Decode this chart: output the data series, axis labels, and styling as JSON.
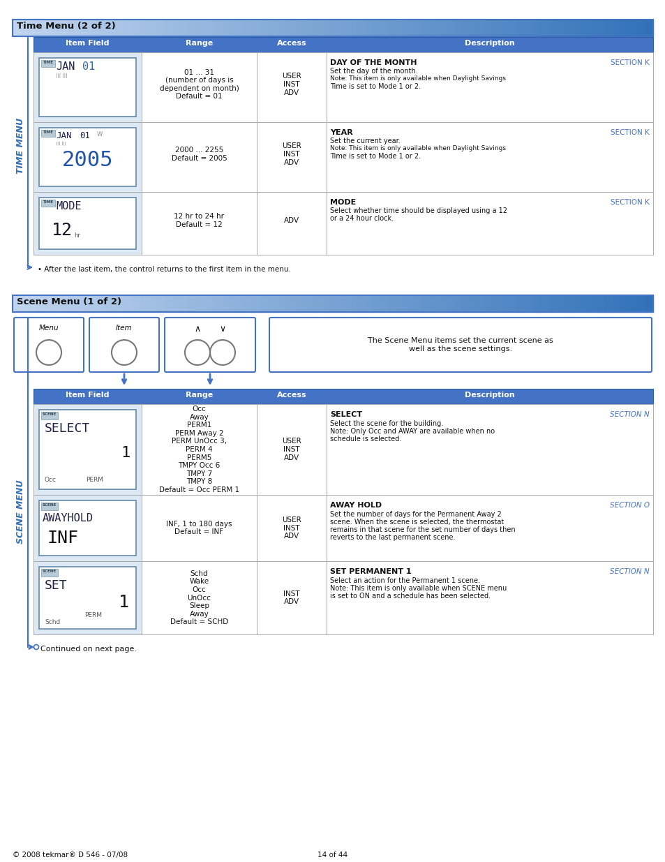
{
  "page_bg": "#ffffff",
  "time_menu_title": "Time Menu (2 of 2)",
  "scene_menu_title": "Scene Menu (1 of 2)",
  "header_bg": "#4472c4",
  "section_header_bg_left": "#c5d9f1",
  "section_header_bg_right": "#2e75b6",
  "table_header_cols": [
    "Item Field",
    "Range",
    "Access",
    "Description"
  ],
  "side_label_color": "#3070b8",
  "section_k_color": "#4472c4",
  "section_n_color": "#4472c4",
  "section_o_color": "#4472c4",
  "border_color": "#4472c4",
  "display_bg": "#c8d8e8",
  "display_item_bg": "#dde8f0",
  "time_rows": [
    {
      "range": "01 ... 31\n(number of days is\ndependent on month)\nDefault = 01",
      "access": "USER\nINST\nADV",
      "desc_title": "DAY OF THE MONTH",
      "desc_section": "SECTION K",
      "desc_body": "Set the day of the month.\nNote: This item is only available when Daylight Savings\nTime is set to Mode 1 or 2."
    },
    {
      "range": "2000 ... 2255\nDefault = 2005",
      "access": "USER\nINST\nADV",
      "desc_title": "YEAR",
      "desc_section": "SECTION K",
      "desc_body": "Set the current year.\nNote: This item is only available when Daylight Savings\nTime is set to Mode 1 or 2."
    },
    {
      "range": "12 hr to 24 hr\nDefault = 12",
      "access": "ADV",
      "desc_title": "MODE",
      "desc_section": "SECTION K",
      "desc_body": "Select whether time should be displayed using a 12\nor a 24 hour clock."
    }
  ],
  "scene_rows": [
    {
      "range": "Occ\nAway\nPERM1\nPERM Away 2\nPERM UnOcc 3,\nPERM 4\nPERM5\nTMPY Occ 6\nTMPY 7\nTMPY 8\nDefault = Occ PERM 1",
      "access": "USER\nINST\nADV",
      "desc_title": "SELECT",
      "desc_section": "SECTION N",
      "desc_body": "Select the scene for the building.\nNote: Only Occ and AWAY are available when no\nschedule is selected."
    },
    {
      "range": "INF, 1 to 180 days\nDefault = INF",
      "access": "USER\nINST\nADV",
      "desc_title": "AWAY HOLD",
      "desc_section": "SECTION O",
      "desc_body": "Set the number of days for the Permanent Away 2\nscene. When the scene is selected, the thermostat\nremains in that scene for the set number of days then\nreverts to the last permanent scene."
    },
    {
      "range": "Schd\nWake\nOcc\nUnOcc\nSleep\nAway\nDefault = SCHD",
      "access": "INST\nADV",
      "desc_title": "SET PERMANENT 1",
      "desc_section": "SECTION N",
      "desc_body": "Select an action for the Permanent 1 scene.\nNote: This item is only available when SCENE menu\nis set to ON and a schedule has been selected."
    }
  ],
  "footer_text": "Continued on next page.",
  "copyright_text": "© 2008 tekmar® D 546 - 07/08",
  "page_num_text": "14 of 44",
  "arrow_note_time": "After the last item, the control returns to the first item in the menu.",
  "scene_button_desc": "The Scene Menu items set the current scene as\nwell as the scene settings."
}
